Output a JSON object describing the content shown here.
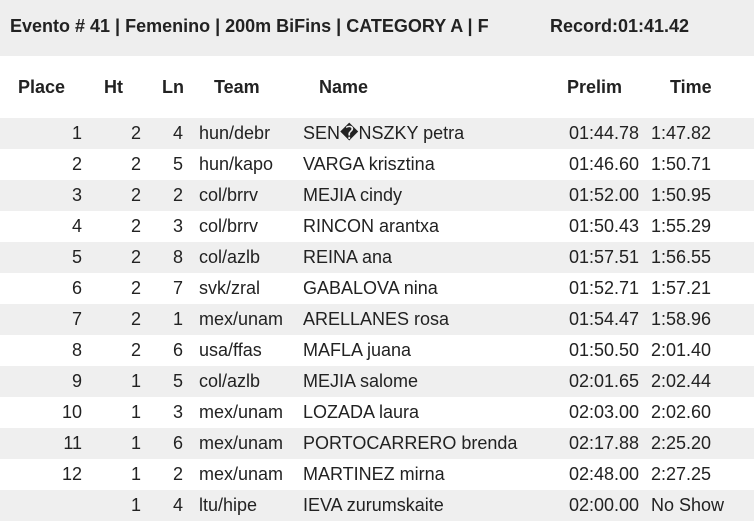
{
  "header": {
    "title": "Evento # 41 | Femenino | 200m BiFins | CATEGORY A | F",
    "record": "Record:01:41.42"
  },
  "table": {
    "columns": [
      "Place",
      "Ht",
      "Ln",
      "Team",
      "Name",
      "Prelim",
      "Time"
    ],
    "rows": [
      [
        "1",
        "2",
        "4",
        "hun/debr",
        "SEN�NSZKY petra",
        "01:44.78",
        "1:47.82"
      ],
      [
        "2",
        "2",
        "5",
        "hun/kapo",
        "VARGA krisztina",
        "01:46.60",
        "1:50.71"
      ],
      [
        "3",
        "2",
        "2",
        "col/brrv",
        "MEJIA cindy",
        "01:52.00",
        "1:50.95"
      ],
      [
        "4",
        "2",
        "3",
        "col/brrv",
        "RINCON arantxa",
        "01:50.43",
        "1:55.29"
      ],
      [
        "5",
        "2",
        "8",
        "col/azlb",
        "REINA ana",
        "01:57.51",
        "1:56.55"
      ],
      [
        "6",
        "2",
        "7",
        "svk/zral",
        "GABALOVA nina",
        "01:52.71",
        "1:57.21"
      ],
      [
        "7",
        "2",
        "1",
        "mex/unam",
        "ARELLANES rosa",
        "01:54.47",
        "1:58.96"
      ],
      [
        "8",
        "2",
        "6",
        "usa/ffas",
        "MAFLA juana",
        "01:50.50",
        "2:01.40"
      ],
      [
        "9",
        "1",
        "5",
        "col/azlb",
        "MEJIA salome",
        "02:01.65",
        "2:02.44"
      ],
      [
        "10",
        "1",
        "3",
        "mex/unam",
        "LOZADA laura",
        "02:03.00",
        "2:02.60"
      ],
      [
        "11",
        "1",
        "6",
        "mex/unam",
        "PORTOCARRERO brenda",
        "02:17.88",
        "2:25.20"
      ],
      [
        "12",
        "1",
        "2",
        "mex/unam",
        "MARTINEZ mirna",
        "02:48.00",
        "2:27.25"
      ],
      [
        null,
        "1",
        "4",
        "ltu/hipe",
        "IEVA zurumskaite",
        "02:00.00",
        "No Show"
      ]
    ]
  }
}
